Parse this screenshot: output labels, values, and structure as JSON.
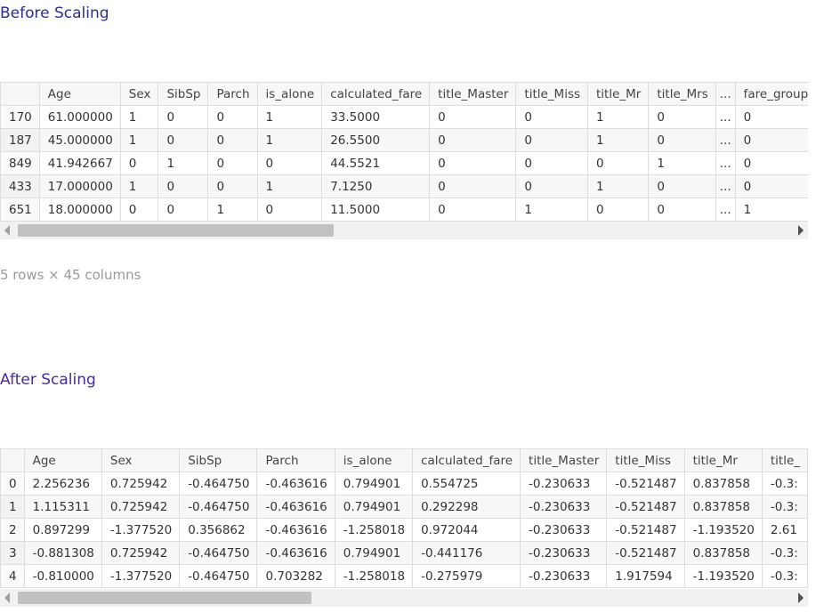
{
  "before": {
    "title": "Before Scaling",
    "columns": [
      "",
      "Age",
      "Sex",
      "SibSp",
      "Parch",
      "is_alone",
      "calculated_fare",
      "title_Master",
      "title_Miss",
      "title_Mr",
      "title_Mrs",
      "...",
      "fare_group_r"
    ],
    "rows": [
      [
        "170",
        "61.000000",
        "1",
        "0",
        "0",
        "1",
        "33.5000",
        "0",
        "0",
        "1",
        "0",
        "...",
        "0"
      ],
      [
        "187",
        "45.000000",
        "1",
        "0",
        "0",
        "1",
        "26.5500",
        "0",
        "0",
        "1",
        "0",
        "...",
        "0"
      ],
      [
        "849",
        "41.942667",
        "0",
        "1",
        "0",
        "0",
        "44.5521",
        "0",
        "0",
        "0",
        "1",
        "...",
        "0"
      ],
      [
        "433",
        "17.000000",
        "1",
        "0",
        "0",
        "1",
        "7.1250",
        "0",
        "0",
        "1",
        "0",
        "...",
        "0"
      ],
      [
        "651",
        "18.000000",
        "0",
        "0",
        "1",
        "0",
        "11.5000",
        "0",
        "1",
        "0",
        "0",
        "...",
        "1"
      ]
    ],
    "shape_caption": "5 rows × 45 columns"
  },
  "after": {
    "title": "After Scaling",
    "columns": [
      "",
      "Age",
      "Sex",
      "SibSp",
      "Parch",
      "is_alone",
      "calculated_fare",
      "title_Master",
      "title_Miss",
      "title_Mr",
      "title_"
    ],
    "rows": [
      [
        "0",
        "2.256236",
        "0.725942",
        "-0.464750",
        "-0.463616",
        "0.794901",
        "0.554725",
        "-0.230633",
        "-0.521487",
        "0.837858",
        "-0.3:"
      ],
      [
        "1",
        "1.115311",
        "0.725942",
        "-0.464750",
        "-0.463616",
        "0.794901",
        "0.292298",
        "-0.230633",
        "-0.521487",
        "0.837858",
        "-0.3:"
      ],
      [
        "2",
        "0.897299",
        "-1.377520",
        "0.356862",
        "-0.463616",
        "-1.258018",
        "0.972044",
        "-0.230633",
        "-0.521487",
        "-1.193520",
        "2.61"
      ],
      [
        "3",
        "-0.881308",
        "0.725942",
        "-0.464750",
        "-0.463616",
        "0.794901",
        "-0.441176",
        "-0.230633",
        "-0.521487",
        "0.837858",
        "-0.3:"
      ],
      [
        "4",
        "-0.810000",
        "-1.377520",
        "-0.464750",
        "0.703282",
        "-1.258018",
        "-0.275979",
        "-0.230633",
        "1.917594",
        "-1.193520",
        "-0.3:"
      ]
    ]
  }
}
